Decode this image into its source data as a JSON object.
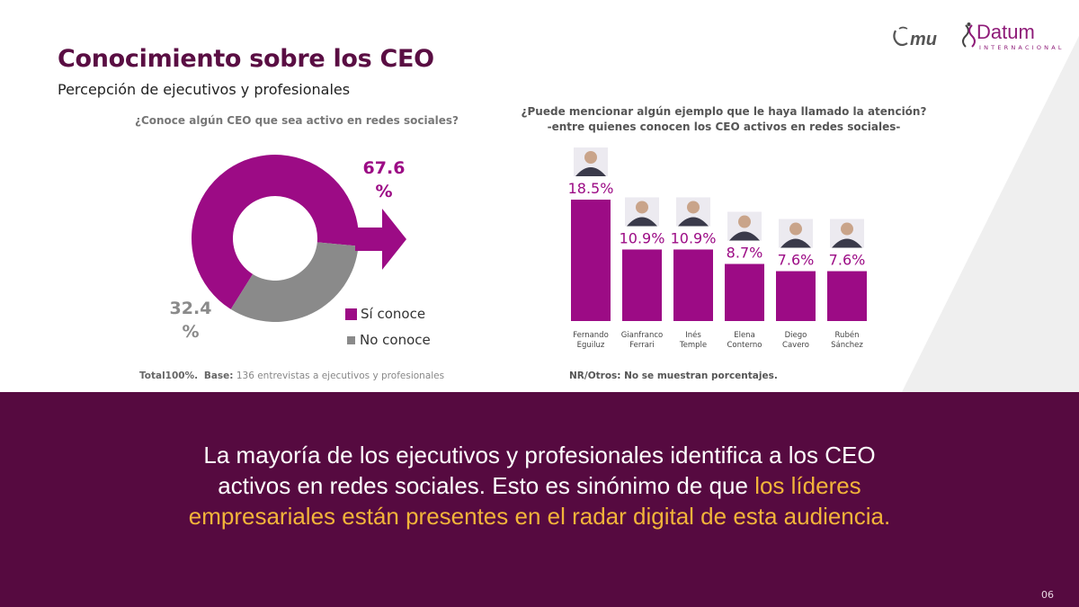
{
  "header": {
    "title": "Conocimiento sobre los CEO",
    "subtitle": "Percepción de ejecutivos y profesionales"
  },
  "logos": {
    "mu": "mu",
    "datum": "Datum",
    "datum_sub": "INTERNACIONAL"
  },
  "colors": {
    "accent": "#9c0b85",
    "gray": "#8a8a8a",
    "title": "#5a0e43",
    "band": "#560a40",
    "highlight": "#f2b43a"
  },
  "left": {
    "question": "¿Conoce algún CEO que sea activo en redes sociales?",
    "base_label": "Total100%.",
    "base_key": "Base:",
    "base_text": "136 entrevistas a ejecutivos y profesionales"
  },
  "right": {
    "question_line1": "¿Puede mencionar algún ejemplo que le haya llamado la atención?",
    "question_line2": "-entre quienes conocen los CEO activos en redes sociales-",
    "note": "NR/Otros: No se muestran porcentajes."
  },
  "chart_data": [
    {
      "type": "pie",
      "variant": "donut",
      "categories": [
        "Sí conoce",
        "No conoce"
      ],
      "values": [
        67.6,
        32.4
      ],
      "value_labels": [
        [
          "67.6",
          "%"
        ],
        [
          "32.4",
          "%"
        ]
      ],
      "colors": [
        "#9c0b85",
        "#8a8a8a"
      ],
      "legend_position": "bottom-right",
      "title": ""
    },
    {
      "type": "bar",
      "categories": [
        [
          "Fernando",
          "Eguiluz"
        ],
        [
          "Gianfranco",
          "Ferrari"
        ],
        [
          "Inés",
          "Temple"
        ],
        [
          "Elena",
          "Conterno"
        ],
        [
          "Diego",
          "Cavero"
        ],
        [
          "Rubén",
          "Sánchez"
        ]
      ],
      "values": [
        18.5,
        10.9,
        10.9,
        8.7,
        7.6,
        7.6
      ],
      "value_labels": [
        "18.5%",
        "10.9%",
        "10.9%",
        "8.7%",
        "7.6%",
        "7.6%"
      ],
      "photo_icons": [
        "person-photo-icon",
        "person-photo-icon",
        "person-photo-icon",
        "person-photo-icon",
        "person-photo-icon",
        "person-photo-icon"
      ],
      "color": "#9c0b85",
      "ylim": [
        0,
        18.5
      ],
      "grid": false,
      "title": ""
    }
  ],
  "conclusion": {
    "part1": "La mayoría de los ejecutivos y profesionales identifica a los CEO activos en redes sociales. Esto es sinónimo de que ",
    "highlight": "los líderes empresariales están presentes en el radar digital de esta audiencia."
  },
  "page_number": "06"
}
